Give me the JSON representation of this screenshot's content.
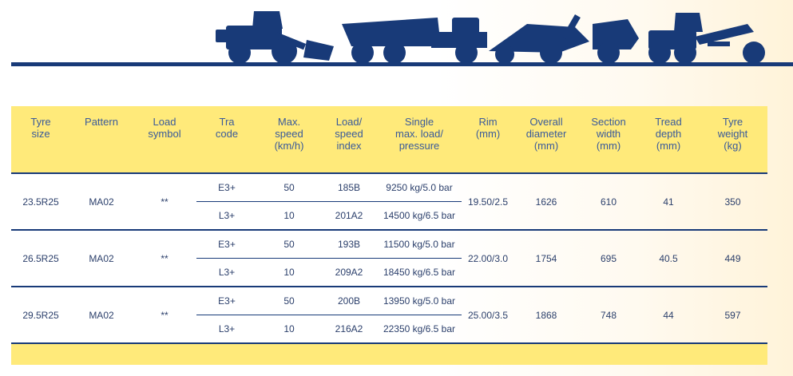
{
  "headers": [
    {
      "key": "size",
      "label": "Tyre\nsize"
    },
    {
      "key": "pattern",
      "label": "Pattern"
    },
    {
      "key": "load_symbol",
      "label": "Load\nsymbol"
    },
    {
      "key": "tra_code",
      "label": "Tra\ncode"
    },
    {
      "key": "max_speed",
      "label": "Max.\nspeed\n(km/h)"
    },
    {
      "key": "load_speed_index",
      "label": "Load/\nspeed\nindex"
    },
    {
      "key": "single_max",
      "label": "Single\nmax. load/\npressure"
    },
    {
      "key": "rim",
      "label": "Rim\n(mm)"
    },
    {
      "key": "overall_diameter",
      "label": "Overall\ndiameter\n(mm)"
    },
    {
      "key": "section_width",
      "label": "Section\nwidth\n(mm)"
    },
    {
      "key": "tread_depth",
      "label": "Tread\ndepth\n(mm)"
    },
    {
      "key": "tyre_weight",
      "label": "Tyre\nweight\n(kg)"
    }
  ],
  "groups": [
    {
      "size": "23.5R25",
      "pattern": "MA02",
      "load_symbol": "**",
      "rim": "19.50/2.5",
      "overall_diameter": "1626",
      "section_width": "610",
      "tread_depth": "41",
      "tyre_weight": "350",
      "rows": [
        {
          "tra_code": "E3+",
          "max_speed": "50",
          "load_speed_index": "185B",
          "single_max": "9250 kg/5.0 bar"
        },
        {
          "tra_code": "L3+",
          "max_speed": "10",
          "load_speed_index": "201A2",
          "single_max": "14500 kg/6.5 bar"
        }
      ]
    },
    {
      "size": "26.5R25",
      "pattern": "MA02",
      "load_symbol": "**",
      "rim": "22.00/3.0",
      "overall_diameter": "1754",
      "section_width": "695",
      "tread_depth": "40.5",
      "tyre_weight": "449",
      "rows": [
        {
          "tra_code": "E3+",
          "max_speed": "50",
          "load_speed_index": "193B",
          "single_max": "11500 kg/5.0 bar"
        },
        {
          "tra_code": "L3+",
          "max_speed": "10",
          "load_speed_index": "209A2",
          "single_max": "18450 kg/6.5 bar"
        }
      ]
    },
    {
      "size": "29.5R25",
      "pattern": "MA02",
      "load_symbol": "**",
      "rim": "25.00/3.5",
      "overall_diameter": "1868",
      "section_width": "748",
      "tread_depth": "44",
      "tyre_weight": "597",
      "rows": [
        {
          "tra_code": "E3+",
          "max_speed": "50",
          "load_speed_index": "200B",
          "single_max": "13950 kg/5.0 bar"
        },
        {
          "tra_code": "L3+",
          "max_speed": "10",
          "load_speed_index": "216A2",
          "single_max": "22350 kg/6.5 bar"
        }
      ]
    }
  ],
  "colors": {
    "navy": "#183a78",
    "yellow": "#ffea7a",
    "text": "#2b3f6b"
  },
  "icons": [
    "wheel-loader-icon",
    "articulated-dump-truck-icon",
    "scraper-icon",
    "motor-grader-icon"
  ]
}
